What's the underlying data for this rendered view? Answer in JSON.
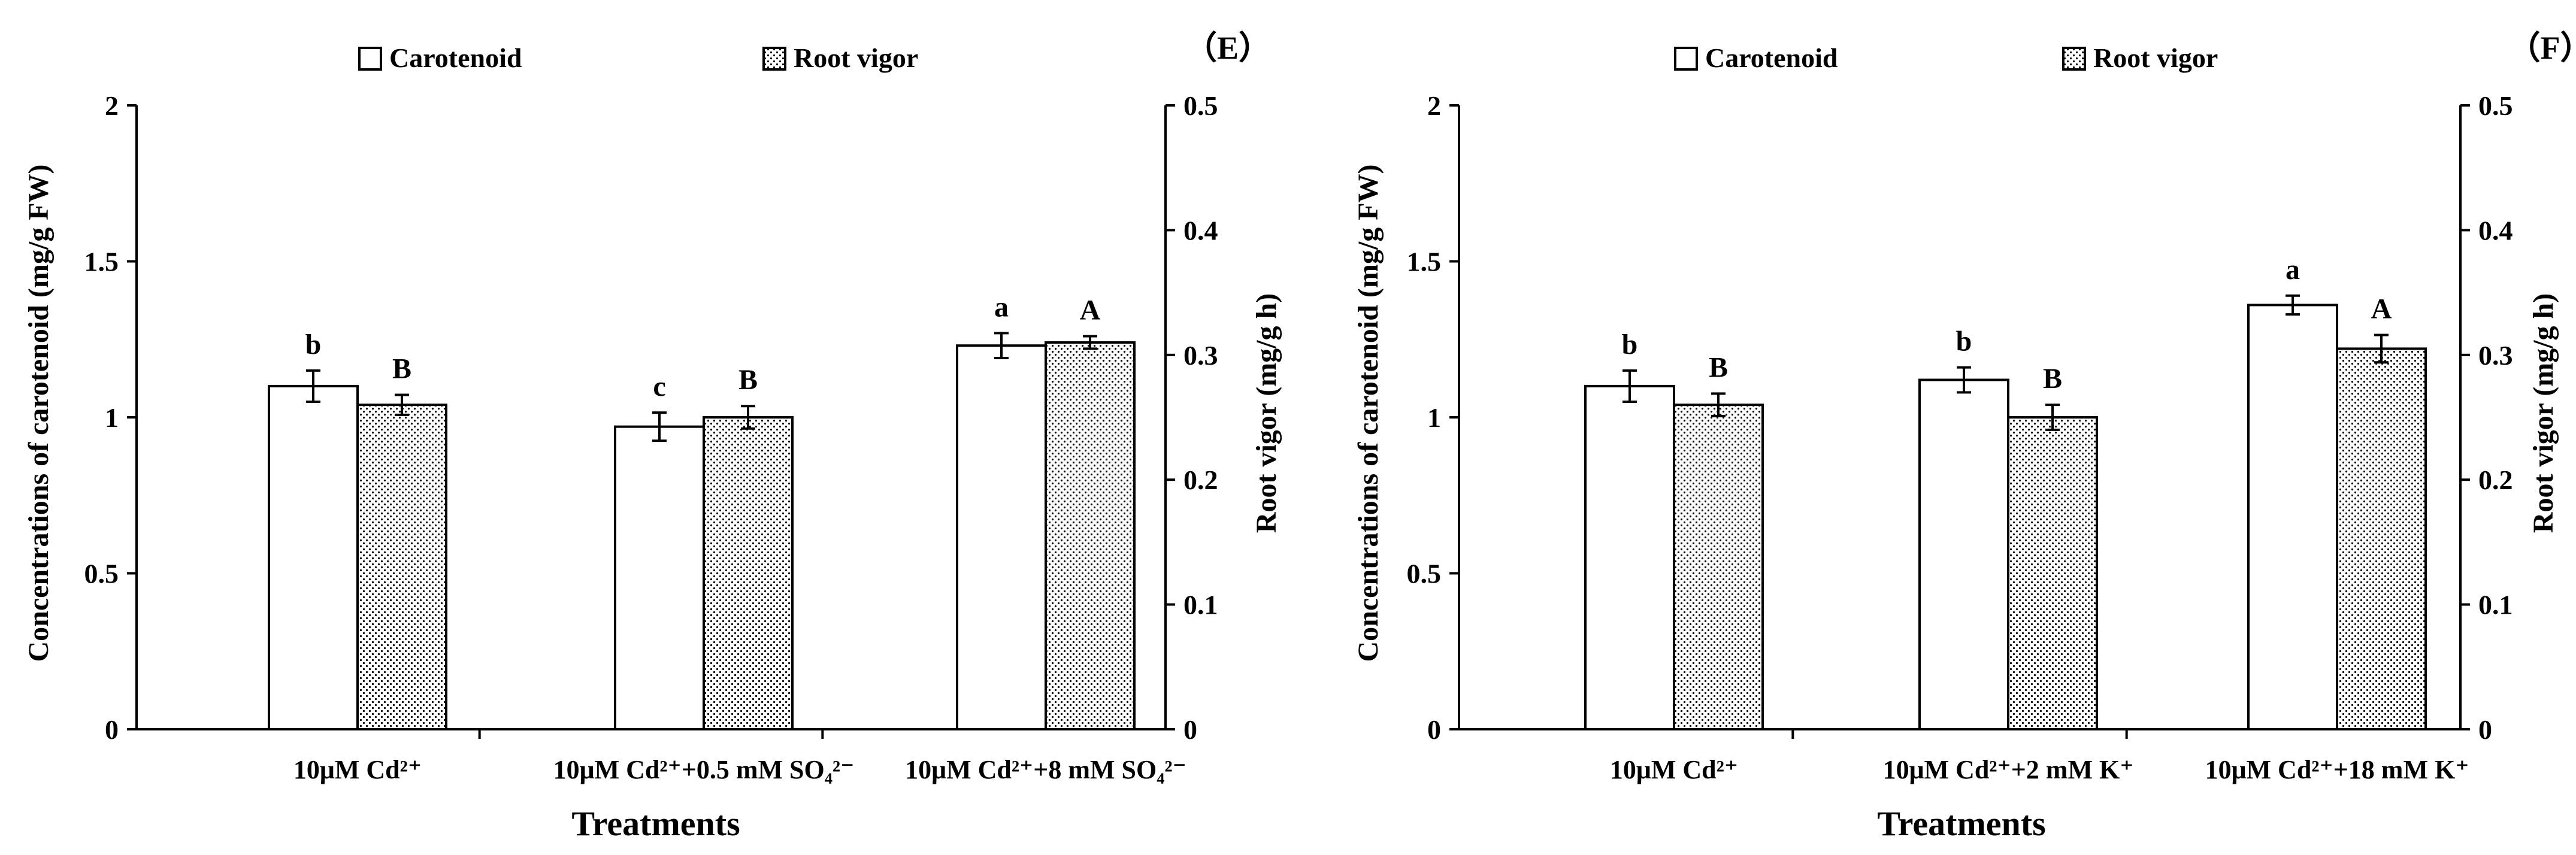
{
  "chart_data": [
    {
      "type": "bar",
      "panel_label": "（E）",
      "categories": [
        "10μM Cd²⁺",
        "10μM Cd²⁺+0.5 mM SO₄²⁻",
        "10μM Cd²⁺+8 mM SO₄²⁻"
      ],
      "series": [
        {
          "name": "Carotenoid",
          "axis": "left",
          "pattern": "none",
          "values": [
            1.1,
            0.97,
            1.23
          ],
          "errors": [
            0.05,
            0.045,
            0.04
          ],
          "letters": [
            "b",
            "c",
            "a"
          ]
        },
        {
          "name": "Root vigor",
          "axis": "right",
          "pattern": "dots",
          "values": [
            0.26,
            0.25,
            0.31
          ],
          "errors": [
            0.008,
            0.009,
            0.005
          ],
          "letters": [
            "B",
            "B",
            "A"
          ]
        }
      ],
      "xlabel": "Treatments",
      "ylabel_left": "Concentrations of carotenoid (mg/g FW)",
      "ylabel_right": "Root vigor (mg/g h)",
      "ylim_left": [
        0,
        2
      ],
      "ylim_right": [
        0,
        0.5
      ],
      "yticks_left": [
        "0",
        "0.5",
        "1",
        "1.5",
        "2"
      ],
      "yticks_right": [
        "0",
        "0.1",
        "0.2",
        "0.3",
        "0.4",
        "0.5"
      ],
      "grid": false,
      "legend": "top"
    },
    {
      "type": "bar",
      "panel_label": "（F）",
      "categories": [
        "10μM Cd²⁺",
        "10μM Cd²⁺+2 mM K⁺",
        "10μM Cd²⁺+18 mM K⁺"
      ],
      "series": [
        {
          "name": "Carotenoid",
          "axis": "left",
          "pattern": "none",
          "values": [
            1.1,
            1.12,
            1.36
          ],
          "errors": [
            0.05,
            0.04,
            0.03
          ],
          "letters": [
            "b",
            "b",
            "a"
          ]
        },
        {
          "name": "Root vigor",
          "axis": "right",
          "pattern": "dots",
          "values": [
            0.26,
            0.25,
            0.305
          ],
          "errors": [
            0.009,
            0.01,
            0.011
          ],
          "letters": [
            "B",
            "B",
            "A"
          ]
        }
      ],
      "xlabel": "Treatments",
      "ylabel_left": "Concentrations of carotenoid (mg/g FW)",
      "ylabel_right": "Root vigor (mg/g h)",
      "ylim_left": [
        0,
        2
      ],
      "ylim_right": [
        0,
        0.5
      ],
      "yticks_left": [
        "0",
        "0.5",
        "1",
        "1.5",
        "2"
      ],
      "yticks_right": [
        "0",
        "0.1",
        "0.2",
        "0.3",
        "0.4",
        "0.5"
      ],
      "grid": false,
      "legend": "top"
    }
  ]
}
